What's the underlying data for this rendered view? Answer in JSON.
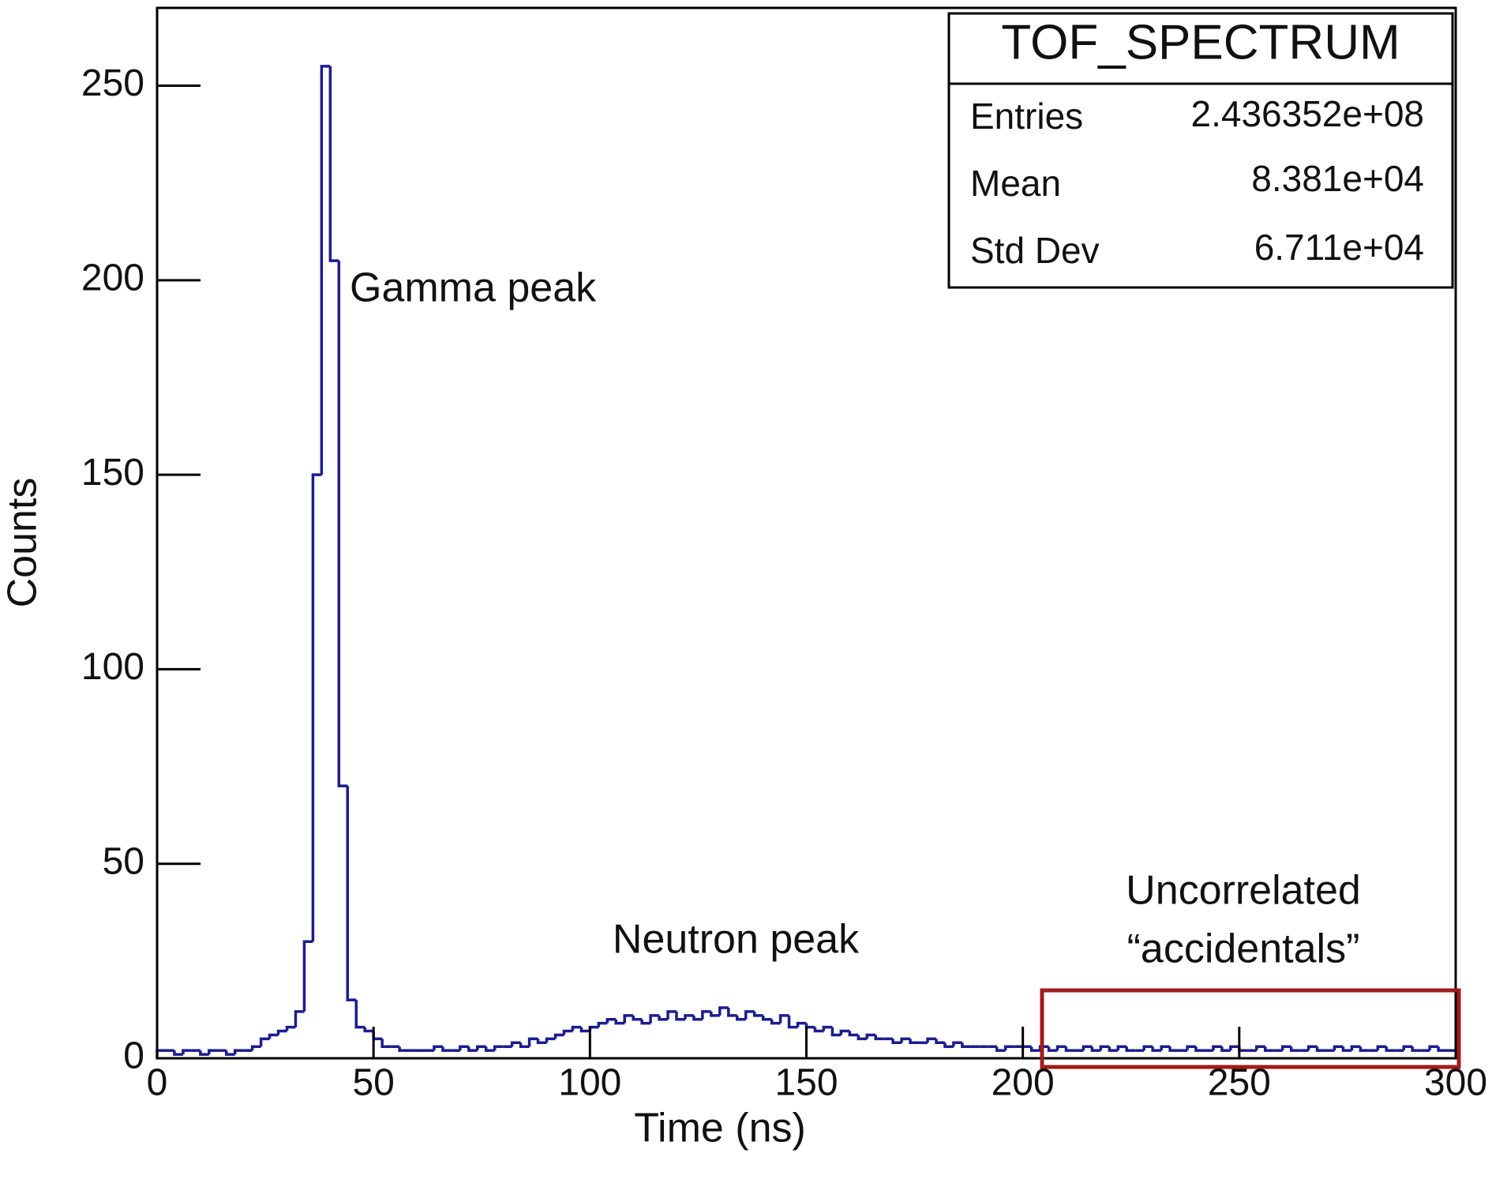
{
  "chart_data": {
    "type": "histogram",
    "x_label": "Time (ns)",
    "y_label": "Counts",
    "bins": [
      0,
      2,
      4,
      6,
      8,
      10,
      12,
      14,
      16,
      18,
      20,
      22,
      24,
      26,
      28,
      30,
      32,
      34,
      36,
      38,
      40,
      42,
      44,
      46,
      48,
      50,
      52,
      54,
      56,
      58,
      60,
      62,
      64,
      66,
      68,
      70,
      72,
      74,
      76,
      78,
      80,
      82,
      84,
      86,
      88,
      90,
      92,
      94,
      96,
      98,
      100,
      102,
      104,
      106,
      108,
      110,
      112,
      114,
      116,
      118,
      120,
      122,
      124,
      126,
      128,
      130,
      132,
      134,
      136,
      138,
      140,
      142,
      144,
      146,
      148,
      150,
      152,
      154,
      156,
      158,
      160,
      162,
      164,
      166,
      168,
      170,
      172,
      174,
      176,
      178,
      180,
      182,
      184,
      186,
      188,
      190,
      192,
      194,
      196,
      198,
      200,
      202,
      204,
      206,
      208,
      210,
      212,
      214,
      216,
      218,
      220,
      222,
      224,
      226,
      228,
      230,
      232,
      234,
      236,
      238,
      240,
      242,
      244,
      246,
      248,
      250,
      252,
      254,
      256,
      258,
      260,
      262,
      264,
      266,
      268,
      270,
      272,
      274,
      276,
      278,
      280,
      282,
      284,
      286,
      288,
      290,
      292,
      294,
      296,
      298,
      300
    ],
    "values": [
      2,
      2,
      1,
      2,
      2,
      1,
      2,
      2,
      1,
      2,
      2,
      3,
      5,
      6,
      7,
      8,
      12,
      30,
      150,
      255,
      205,
      70,
      15,
      8,
      7,
      5,
      3,
      3,
      2,
      2,
      2,
      2,
      3,
      2,
      2,
      3,
      2,
      3,
      2,
      3,
      3,
      4,
      3,
      5,
      4,
      5,
      6,
      7,
      8,
      7,
      8,
      9,
      10,
      9,
      11,
      10,
      9,
      11,
      10,
      12,
      10,
      11,
      10,
      12,
      11,
      13,
      11,
      10,
      12,
      11,
      10,
      9,
      11,
      8,
      9,
      8,
      7,
      8,
      6,
      7,
      6,
      5,
      6,
      5,
      5,
      4,
      5,
      4,
      4,
      5,
      4,
      3,
      4,
      3,
      3,
      3,
      3,
      2,
      3,
      3,
      3,
      2,
      3,
      2,
      3,
      2,
      2,
      3,
      2,
      3,
      2,
      3,
      2,
      2,
      3,
      2,
      3,
      2,
      2,
      3,
      2,
      2,
      3,
      2,
      3,
      2,
      2,
      3,
      2,
      2,
      3,
      2,
      2,
      3,
      2,
      2,
      3,
      2,
      3,
      2,
      2,
      3,
      2,
      2,
      3,
      2,
      2,
      3,
      2,
      2
    ],
    "color": "#1c1c8e",
    "xlim": [
      0,
      300
    ],
    "xticks": [
      0,
      50,
      100,
      150,
      200,
      250,
      300
    ],
    "ylim": [
      0,
      270
    ],
    "yticks": [
      0,
      50,
      100,
      150,
      200,
      250
    ],
    "stats": {
      "title": "TOF_SPECTRUM",
      "rows": [
        {
          "label": "Entries",
          "value": "2.436352e+08"
        },
        {
          "label": "Mean",
          "value": "8.381e+04"
        },
        {
          "label": "Std Dev",
          "value": "6.711e+04"
        }
      ]
    },
    "annotations": [
      "Gamma peak",
      "Neutron peak",
      "Uncorrelated",
      "“accidentals”"
    ]
  }
}
